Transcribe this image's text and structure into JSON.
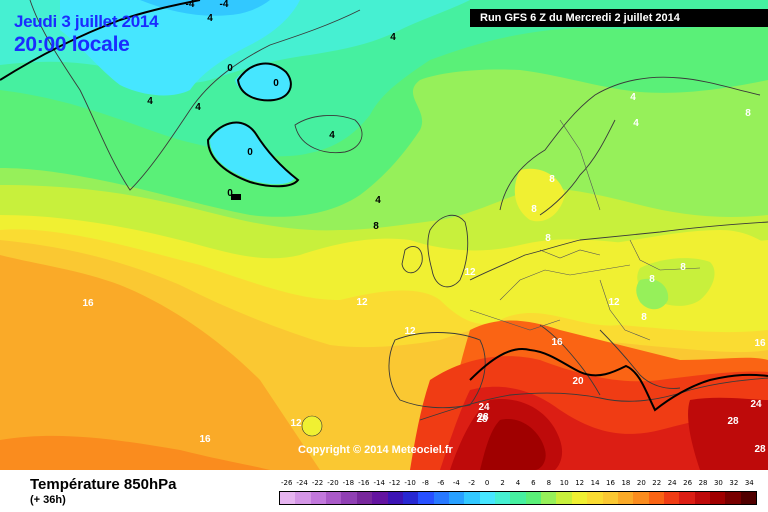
{
  "header": {
    "date": "Jeudi 3 juillet 2014",
    "time": "20:00 locale",
    "run": "Run GFS 6 Z du Mercredi 2 juillet 2014"
  },
  "map": {
    "copyright": "Copyright © 2014 Meteociel.fr",
    "isotherm_labels": [
      {
        "text": "-4",
        "color": "#000000"
      },
      {
        "text": "-4",
        "color": "#000000"
      },
      {
        "text": "4",
        "color": "#000000"
      },
      {
        "text": "4",
        "color": "#000000"
      },
      {
        "text": "0",
        "color": "#000000"
      },
      {
        "text": "0",
        "color": "#000000"
      },
      {
        "text": "4",
        "color": "#000000"
      },
      {
        "text": "4",
        "color": "#000000"
      },
      {
        "text": "0",
        "color": "#000000"
      },
      {
        "text": "4",
        "color": "#000000"
      },
      {
        "text": "0",
        "color": "#000000"
      },
      {
        "text": "4",
        "color": "#000000"
      },
      {
        "text": "8",
        "color": "#000000"
      },
      {
        "text": "4",
        "color": "#ffffff"
      },
      {
        "text": "4",
        "color": "#ffffff"
      },
      {
        "text": "8",
        "color": "#ffffff"
      },
      {
        "text": "8",
        "color": "#ffffff"
      },
      {
        "text": "8",
        "color": "#ffffff"
      },
      {
        "text": "8",
        "color": "#ffffff"
      },
      {
        "text": "8",
        "color": "#ffffff"
      },
      {
        "text": "8",
        "color": "#ffffff"
      },
      {
        "text": "12",
        "color": "#ffffff"
      },
      {
        "text": "12",
        "color": "#ffffff"
      },
      {
        "text": "12",
        "color": "#ffffff"
      },
      {
        "text": "8",
        "color": "#ffffff"
      },
      {
        "text": "12",
        "color": "#ffffff"
      },
      {
        "text": "16",
        "color": "#ffffff"
      },
      {
        "text": "16",
        "color": "#ffffff"
      },
      {
        "text": "20",
        "color": "#ffffff"
      },
      {
        "text": "16",
        "color": "#ffffff"
      },
      {
        "text": "16",
        "color": "#ffffff"
      },
      {
        "text": "12",
        "color": "#ffffff"
      },
      {
        "text": "24",
        "color": "#ffffff"
      },
      {
        "text": "28",
        "color": "#ffffff"
      },
      {
        "text": "28",
        "color": "#ffffff"
      },
      {
        "text": "24",
        "color": "#ffffff"
      },
      {
        "text": "28",
        "color": "#ffffff"
      },
      {
        "text": "28",
        "color": "#ffffff"
      }
    ]
  },
  "legend": {
    "title": "Température 850hPa",
    "lead": "(+ 36h)",
    "scale": [
      {
        "label": "-26",
        "color": "#e6b4f0"
      },
      {
        "label": "-24",
        "color": "#d496e6"
      },
      {
        "label": "-22",
        "color": "#c278dc"
      },
      {
        "label": "-20",
        "color": "#aa5ac8"
      },
      {
        "label": "-18",
        "color": "#9040b4"
      },
      {
        "label": "-16",
        "color": "#78289c"
      },
      {
        "label": "-14",
        "color": "#6414a0"
      },
      {
        "label": "-12",
        "color": "#3c14b4"
      },
      {
        "label": "-10",
        "color": "#2828d2"
      },
      {
        "label": "-8",
        "color": "#2850ff"
      },
      {
        "label": "-6",
        "color": "#2878ff"
      },
      {
        "label": "-4",
        "color": "#28a0ff"
      },
      {
        "label": "-2",
        "color": "#32c8ff"
      },
      {
        "label": "0",
        "color": "#46e6ff"
      },
      {
        "label": "2",
        "color": "#46f0d2"
      },
      {
        "label": "4",
        "color": "#46f0a0"
      },
      {
        "label": "6",
        "color": "#5af078"
      },
      {
        "label": "8",
        "color": "#96f05a"
      },
      {
        "label": "10",
        "color": "#c8f03c"
      },
      {
        "label": "12",
        "color": "#f0f032"
      },
      {
        "label": "14",
        "color": "#fadc32"
      },
      {
        "label": "16",
        "color": "#fac832"
      },
      {
        "label": "18",
        "color": "#faaa28"
      },
      {
        "label": "20",
        "color": "#fa8c1e"
      },
      {
        "label": "22",
        "color": "#fa6414"
      },
      {
        "label": "24",
        "color": "#f03c14"
      },
      {
        "label": "26",
        "color": "#dc1e14"
      },
      {
        "label": "28",
        "color": "#be0a0a"
      },
      {
        "label": "30",
        "color": "#a00000"
      },
      {
        "label": "32",
        "color": "#780000"
      },
      {
        "label": "34",
        "color": "#500000"
      }
    ]
  }
}
